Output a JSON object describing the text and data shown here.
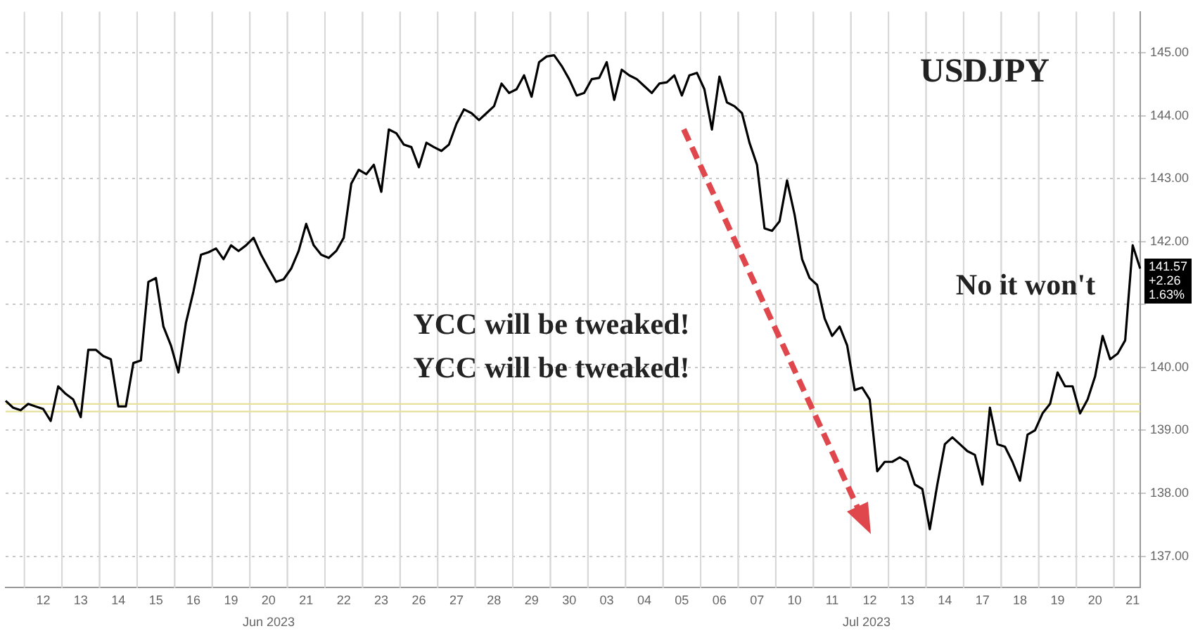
{
  "chart_data": {
    "type": "line",
    "title": "USDJPY",
    "categories": [
      null,
      null,
      null,
      null,
      null,
      "12",
      null,
      null,
      null,
      null,
      "13",
      null,
      null,
      null,
      null,
      "14",
      null,
      null,
      null,
      null,
      "15",
      null,
      null,
      null,
      null,
      "16",
      null,
      null,
      null,
      null,
      "19",
      null,
      null,
      null,
      null,
      "20",
      null,
      null,
      null,
      null,
      "21",
      null,
      null,
      null,
      null,
      "22",
      null,
      null,
      null,
      null,
      "23",
      null,
      null,
      null,
      null,
      "26",
      null,
      null,
      null,
      null,
      "27",
      null,
      null,
      null,
      null,
      "28",
      null,
      null,
      null,
      null,
      "29",
      null,
      null,
      null,
      null,
      "30",
      null,
      null,
      null,
      null,
      "03",
      null,
      null,
      null,
      null,
      "04",
      null,
      null,
      null,
      null,
      "05",
      null,
      null,
      null,
      null,
      "06",
      null,
      null,
      null,
      null,
      "07",
      null,
      null,
      null,
      null,
      "10",
      null,
      null,
      null,
      null,
      "11",
      null,
      null,
      null,
      null,
      "12",
      null,
      null,
      null,
      null,
      "13",
      null,
      null,
      null,
      null,
      "14",
      null,
      null,
      null,
      null,
      "17",
      null,
      null,
      null,
      null,
      "18",
      null,
      null,
      null,
      null,
      "19",
      null,
      null,
      null,
      null,
      "20",
      null,
      null,
      null,
      null,
      "21",
      null
    ],
    "series": [
      {
        "color": "#000000",
        "values": [
          139.47,
          139.36,
          139.32,
          139.42,
          139.38,
          139.34,
          139.15,
          139.7,
          139.58,
          139.49,
          139.21,
          140.28,
          140.28,
          140.18,
          140.13,
          139.38,
          139.38,
          140.07,
          140.11,
          141.36,
          141.42,
          140.65,
          140.35,
          139.92,
          140.71,
          141.21,
          141.79,
          141.83,
          141.89,
          141.72,
          141.94,
          141.85,
          141.94,
          142.06,
          141.79,
          141.57,
          141.36,
          141.4,
          141.57,
          141.85,
          142.28,
          141.94,
          141.79,
          141.74,
          141.85,
          142.06,
          142.92,
          143.14,
          143.07,
          143.22,
          142.79,
          143.78,
          143.72,
          143.54,
          143.5,
          143.18,
          143.57,
          143.5,
          143.44,
          143.54,
          143.87,
          144.1,
          144.04,
          143.93,
          144.04,
          144.15,
          144.51,
          144.36,
          144.42,
          144.64,
          144.3,
          144.85,
          144.94,
          144.96,
          144.79,
          144.58,
          144.32,
          144.36,
          144.58,
          144.6,
          144.85,
          144.25,
          144.73,
          144.64,
          144.58,
          144.47,
          144.36,
          144.51,
          144.53,
          144.64,
          144.32,
          144.64,
          144.68,
          144.42,
          143.78,
          144.62,
          144.21,
          144.15,
          144.04,
          143.57,
          143.22,
          142.21,
          142.17,
          142.32,
          142.97,
          142.43,
          141.72,
          141.42,
          141.31,
          140.78,
          140.5,
          140.65,
          140.35,
          139.64,
          139.68,
          139.49,
          138.35,
          138.5,
          138.5,
          138.57,
          138.5,
          138.14,
          138.07,
          137.43,
          138.14,
          138.78,
          138.89,
          138.78,
          138.67,
          138.61,
          138.14,
          139.36,
          138.78,
          138.74,
          138.5,
          138.2,
          138.93,
          139.0,
          139.27,
          139.42,
          139.92,
          139.7,
          139.7,
          139.27,
          139.49,
          139.86,
          140.5,
          140.13,
          140.22,
          140.43,
          141.94,
          141.57
        ]
      }
    ],
    "ylim": [
      136.5,
      145.65
    ],
    "yticks": [
      {
        "value": 137,
        "label": "137.00"
      },
      {
        "value": 138,
        "label": "138.00"
      },
      {
        "value": 139,
        "label": "139.00"
      },
      {
        "value": 140,
        "label": "140.00"
      },
      {
        "value": 141,
        "label": null
      },
      {
        "value": 142,
        "label": "142.00"
      },
      {
        "value": 143,
        "label": "143.00"
      },
      {
        "value": 144,
        "label": "144.00"
      },
      {
        "value": 145,
        "label": "145.00"
      }
    ],
    "ref_lines": [
      {
        "axis": "y",
        "value": 139.3,
        "color": "#e6e09a"
      },
      {
        "axis": "y",
        "value": 139.42,
        "color": "#e6e09a"
      }
    ],
    "annotations": [
      "YCC will be tweaked!",
      "YCC will be tweaked!",
      "No it won't",
      "Jun 2023",
      "Jul 2023",
      "141.57",
      "+2.26",
      "1.63%"
    ],
    "grid": true,
    "legend": false,
    "marker": "none",
    "line_style": "solid"
  }
}
